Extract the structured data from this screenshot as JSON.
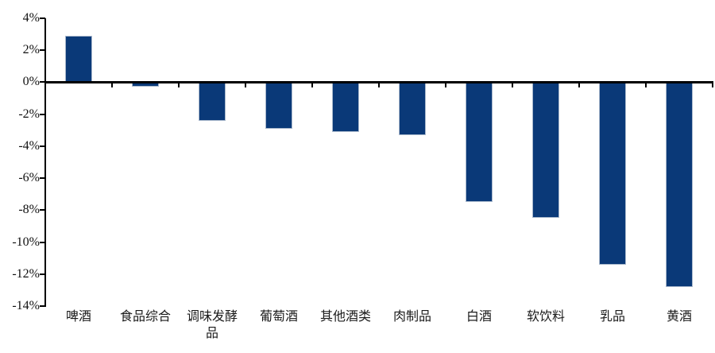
{
  "chart_data": {
    "type": "bar",
    "title": "",
    "categories": [
      "啤酒",
      "食品综合",
      "调味发酵品",
      "葡萄酒",
      "其他酒类",
      "肉制品",
      "白酒",
      "软饮料",
      "乳品",
      "黄酒"
    ],
    "values": [
      2.9,
      -0.3,
      -2.4,
      -2.9,
      -3.1,
      -3.3,
      -7.5,
      -8.5,
      -11.4,
      -12.8
    ],
    "value_unit": "%",
    "ylim": [
      -14,
      4
    ],
    "yticks": [
      {
        "value": 4,
        "label": "4%"
      },
      {
        "value": 2,
        "label": "2%"
      },
      {
        "value": 0,
        "label": "0%"
      },
      {
        "value": -2,
        "label": "-2%"
      },
      {
        "value": -4,
        "label": "-4%"
      },
      {
        "value": -6,
        "label": "-6%"
      },
      {
        "value": -8,
        "label": "-8%"
      },
      {
        "value": -10,
        "label": "-10%"
      },
      {
        "value": -12,
        "label": "-12%"
      }
    ],
    "ytick_bottom": {
      "value": -14,
      "label": "-14%"
    },
    "grid": false,
    "legend": false,
    "colors": {
      "bar_fill": "#0a3978",
      "bar_border": "#a9b8cc",
      "axis": "#000000",
      "text": "#1a1a1a",
      "background": "#ffffff"
    }
  }
}
